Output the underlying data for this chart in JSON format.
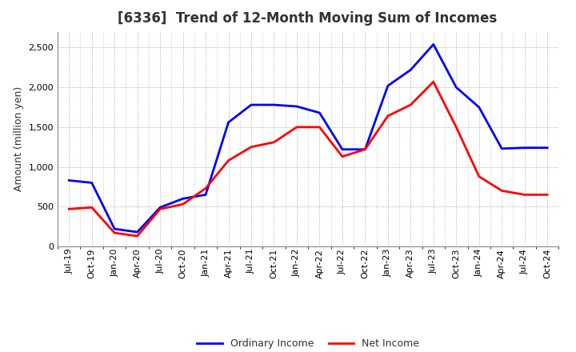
{
  "title": "[6336]  Trend of 12-Month Moving Sum of Incomes",
  "ylabel": "Amount (million yen)",
  "background_color": "#ffffff",
  "plot_bg_color": "#ffffff",
  "grid_color": "#999999",
  "x_labels": [
    "Jul-19",
    "Oct-19",
    "Jan-20",
    "Apr-20",
    "Jul-20",
    "Oct-20",
    "Jan-21",
    "Apr-21",
    "Jul-21",
    "Oct-21",
    "Jan-22",
    "Apr-22",
    "Jul-22",
    "Oct-22",
    "Jan-23",
    "Apr-23",
    "Jul-23",
    "Oct-23",
    "Jan-24",
    "Apr-24",
    "Jul-24",
    "Oct-24"
  ],
  "ordinary_income": [
    830,
    800,
    220,
    180,
    490,
    600,
    650,
    1560,
    1780,
    1780,
    1760,
    1680,
    1220,
    1220,
    2020,
    2220,
    2540,
    2000,
    1750,
    1230,
    1240,
    1240
  ],
  "net_income": [
    470,
    490,
    170,
    130,
    470,
    530,
    730,
    1080,
    1250,
    1310,
    1500,
    1500,
    1130,
    1220,
    1640,
    1780,
    2070,
    1500,
    880,
    700,
    650,
    650
  ],
  "ordinary_income_color": "#0000ff",
  "net_income_color": "#ff0000",
  "line_width": 2.0,
  "ylim": [
    0,
    2700
  ],
  "yticks": [
    0,
    500,
    1000,
    1500,
    2000,
    2500
  ],
  "legend_labels": [
    "Ordinary Income",
    "Net Income"
  ],
  "title_fontsize": 12,
  "ylabel_fontsize": 9,
  "tick_fontsize": 8,
  "legend_fontsize": 9
}
